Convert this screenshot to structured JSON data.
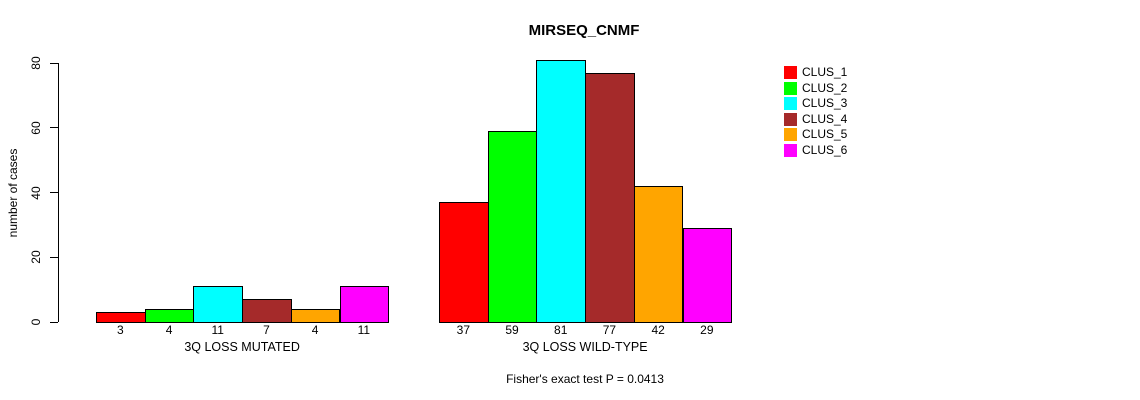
{
  "chart_data": {
    "type": "bar",
    "title": "MIRSEQ_CNMF",
    "ylabel": "number of cases",
    "xlabel": "",
    "ylim": [
      0,
      80
    ],
    "yticks": [
      0,
      20,
      40,
      60,
      80
    ],
    "grid": false,
    "legend_position": "top-right",
    "series": [
      {
        "name": "CLUS_1",
        "color": "#ff0000"
      },
      {
        "name": "CLUS_2",
        "color": "#00ff00"
      },
      {
        "name": "CLUS_3",
        "color": "#00ffff"
      },
      {
        "name": "CLUS_4",
        "color": "#a52a2a"
      },
      {
        "name": "CLUS_5",
        "color": "#ffa500"
      },
      {
        "name": "CLUS_6",
        "color": "#ff00ff"
      }
    ],
    "groups": [
      {
        "label": "3Q LOSS MUTATED",
        "values": [
          3,
          4,
          11,
          7,
          4,
          11
        ]
      },
      {
        "label": "3Q LOSS WILD-TYPE",
        "values": [
          37,
          59,
          81,
          77,
          42,
          29
        ]
      }
    ],
    "annotation": "Fisher's exact test P = 0.0413"
  }
}
